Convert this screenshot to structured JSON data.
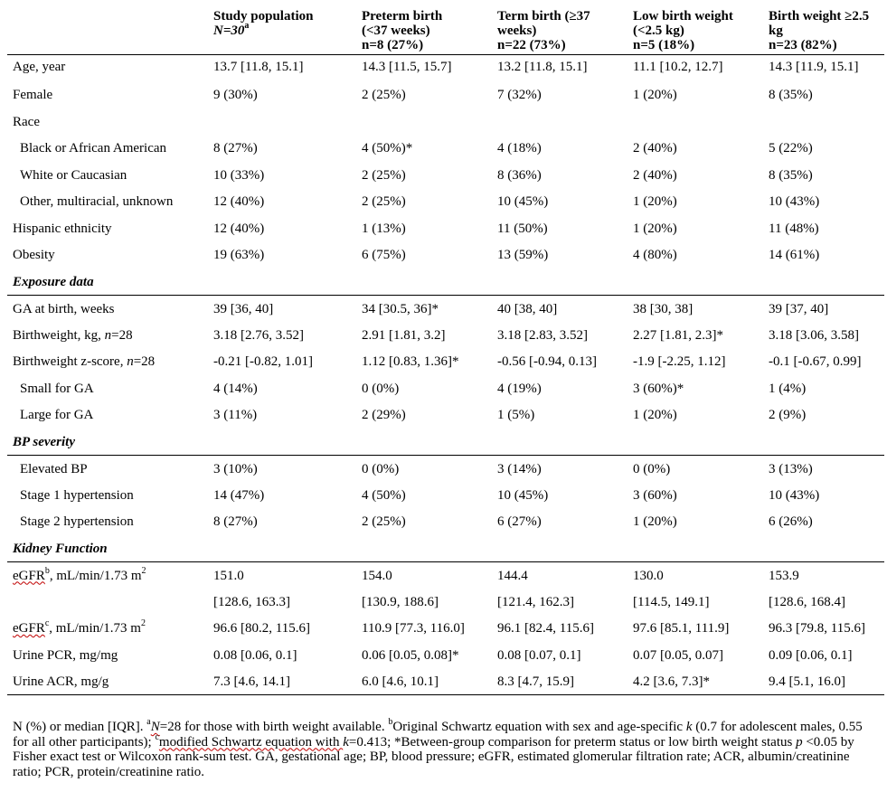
{
  "headers": [
    {
      "l1": "",
      "l2": "",
      "l3": ""
    },
    {
      "l1": "Study population",
      "l2": "N=30",
      "l2sup": "a",
      "l3": ""
    },
    {
      "l1": "Preterm birth",
      "l2": "(<37 weeks)",
      "l3": "n=8 (27%)"
    },
    {
      "l1": "Term birth (≥37",
      "l2": "weeks)",
      "l3": "n=22 (73%)"
    },
    {
      "l1": "Low birth weight",
      "l2": "(<2.5 kg)",
      "l3": "n=5 (18%)"
    },
    {
      "l1": "Birth weight ≥2.5",
      "l2": "kg",
      "l3": "n=23 (82%)"
    }
  ],
  "rows": {
    "age": {
      "label": "Age, year",
      "v": [
        "13.7 [11.8, 15.1]",
        "14.3 [11.5, 15.7]",
        "13.2 [11.8, 15.1]",
        "11.1 [10.2, 12.7]",
        "14.3 [11.9, 15.1]"
      ]
    },
    "female": {
      "label": "Female",
      "v": [
        "9 (30%)",
        "2 (25%)",
        "7 (32%)",
        "1 (20%)",
        "8 (35%)"
      ]
    },
    "race": {
      "label": "Race"
    },
    "black": {
      "label": "Black or African American",
      "v": [
        "8 (27%)",
        "4 (50%)*",
        "4 (18%)",
        "2 (40%)",
        "5 (22%)"
      ]
    },
    "white": {
      "label": "White or Caucasian",
      "v": [
        "10 (33%)",
        "2 (25%)",
        "8 (36%)",
        "2 (40%)",
        "8 (35%)"
      ]
    },
    "other": {
      "label": "Other, multiracial, unknown",
      "v": [
        "12 (40%)",
        "2 (25%)",
        "10 (45%)",
        "1 (20%)",
        "10 (43%)"
      ]
    },
    "hispanic": {
      "label": "Hispanic ethnicity",
      "v": [
        "12 (40%)",
        "1 (13%)",
        "11 (50%)",
        "1 (20%)",
        "11 (48%)"
      ]
    },
    "obesity": {
      "label": "Obesity",
      "v": [
        "19 (63%)",
        "6 (75%)",
        "13 (59%)",
        "4 (80%)",
        "14 (61%)"
      ]
    },
    "exposure": {
      "label": "Exposure data"
    },
    "ga": {
      "label": "GA at birth, weeks",
      "v": [
        "39 [36, 40]",
        "34 [30.5, 36]*",
        "40 [38, 40]",
        "38 [30, 38]",
        "39 [37, 40]"
      ]
    },
    "bw": {
      "label": "Birthweight, kg, ",
      "n": "n",
      "nval": "=28",
      "v": [
        "3.18 [2.76, 3.52]",
        "2.91 [1.81, 3.2]",
        "3.18 [2.83, 3.52]",
        "2.27 [1.81, 2.3]*",
        "3.18 [3.06, 3.58]"
      ]
    },
    "bwz": {
      "label": "Birthweight z-score, ",
      "n": "n",
      "nval": "=28",
      "v": [
        "-0.21 [-0.82, 1.01]",
        "1.12 [0.83, 1.36]*",
        "-0.56 [-0.94, 0.13]",
        "-1.9 [-2.25, 1.12]",
        "-0.1 [-0.67, 0.99]"
      ]
    },
    "sga": {
      "label": "Small for GA",
      "v": [
        "4 (14%)",
        "0 (0%)",
        "4 (19%)",
        "3 (60%)*",
        "1 (4%)"
      ]
    },
    "lga": {
      "label": "Large for GA",
      "v": [
        "3 (11%)",
        "2 (29%)",
        "1 (5%)",
        "1 (20%)",
        "2 (9%)"
      ]
    },
    "bp": {
      "label": "BP severity"
    },
    "elev": {
      "label": "Elevated BP",
      "v": [
        "3 (10%)",
        "0 (0%)",
        "3 (14%)",
        "0 (0%)",
        "3 (13%)"
      ]
    },
    "stage1": {
      "label": "Stage 1 hypertension",
      "v": [
        "14 (47%)",
        "4 (50%)",
        "10 (45%)",
        "3 (60%)",
        "10 (43%)"
      ]
    },
    "stage2": {
      "label": "Stage 2 hypertension",
      "v": [
        "8 (27%)",
        "2 (25%)",
        "6 (27%)",
        "1 (20%)",
        "6 (26%)"
      ]
    },
    "kidney": {
      "label": "Kidney Function"
    },
    "egfrb": {
      "label": "eGFR",
      "sup": "b",
      "unit": ", mL/min/1.73 m",
      "unitsup": "2",
      "v": [
        "151.0",
        "154.0",
        "144.4",
        "130.0",
        "153.9"
      ]
    },
    "egfrb2": {
      "label": "",
      "v": [
        "[128.6, 163.3]",
        "[130.9, 188.6]",
        "[121.4, 162.3]",
        "[114.5, 149.1]",
        "[128.6, 168.4]"
      ]
    },
    "egfrc": {
      "label": "eGFR",
      "sup": "c",
      "unit": ", mL/min/1.73 m",
      "unitsup": "2",
      "v": [
        "96.6 [80.2, 115.6]",
        "110.9 [77.3, 116.0]",
        "96.1 [82.4, 115.6]",
        "97.6 [85.1, 111.9]",
        "96.3 [79.8, 115.6]"
      ]
    },
    "pcr": {
      "label": "Urine PCR, mg/mg",
      "v": [
        "0.08 [0.06, 0.1]",
        "0.06 [0.05, 0.08]*",
        "0.08 [0.07, 0.1]",
        "0.07 [0.05, 0.07]",
        "0.09 [0.06, 0.1]"
      ]
    },
    "acr": {
      "label": "Urine ACR, mg/g",
      "v": [
        "7.3 [4.6, 14.1]",
        "6.0 [4.6, 10.1]",
        "8.3 [4.7, 15.9]",
        "4.2 [3.6, 7.3]*",
        "9.4 [5.1, 16.0]"
      ]
    }
  },
  "footnote": {
    "p1": "N (%) or median [IQR]. ",
    "a_sup": "a",
    "a_n": "N",
    "a_text": "=28 for those with birth weight available",
    "a_tail": ". ",
    "b_sup": "b",
    "b_text": "Original Schwartz equation with sex and age-specific ",
    "k1": "k",
    "b_text2": " (0.7 for adolescent males, 0.55 for all other participants); ",
    "c_sup": "c",
    "c_text": "modified Schwartz equation with ",
    "k2": "k",
    "c_text2": "=0.413; *Between-group comparison for preterm status or low birth weight status ",
    "p": "p",
    "rest": " <0.05 by Fisher exact test or Wilcoxon rank-sum test. GA, gestational age; BP, blood pressure; eGFR, estimated glomerular filtration rate; ACR, albumin/creatinine ratio; PCR, protein/creatinine ratio."
  }
}
